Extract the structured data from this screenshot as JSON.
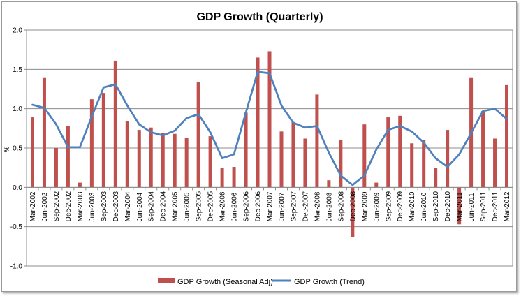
{
  "chart_data": {
    "type": "bar+line",
    "title": "GDP Growth (Quarterly)",
    "ylabel": "%",
    "xlabel": "",
    "ylim": [
      -1.0,
      2.0
    ],
    "yticks": [
      "-1.0",
      "-0.5",
      "0.0",
      "0.5",
      "1.0",
      "1.5",
      "2.0"
    ],
    "grid": "horizontal",
    "legend_position": "bottom",
    "categories": [
      "Mar-2002",
      "Jun-2002",
      "Sep-2002",
      "Dec-2002",
      "Mar-2003",
      "Jun-2003",
      "Sep-2003",
      "Dec-2003",
      "Mar-2004",
      "Jun-2004",
      "Sep-2004",
      "Dec-2004",
      "Mar-2005",
      "Jun-2005",
      "Sep-2005",
      "Dec-2005",
      "Mar-2006",
      "Jun-2006",
      "Sep-2006",
      "Dec-2006",
      "Mar-2007",
      "Jun-2007",
      "Sep-2007",
      "Dec-2007",
      "Mar-2008",
      "Jun-2008",
      "Sep-2008",
      "Dec-2008",
      "Mar-2009",
      "Jun-2009",
      "Sep-2009",
      "Dec-2009",
      "Mar-2010",
      "Jun-2010",
      "Sep-2010",
      "Dec-2010",
      "Mar-2011",
      "Jun-2011",
      "Sep-2011",
      "Dec-2011",
      "Mar-2012"
    ],
    "series": [
      {
        "name": "GDP Growth (Seasonal Adj)",
        "kind": "bar",
        "color": "#c0504d",
        "values": [
          0.89,
          1.39,
          0.5,
          0.78,
          0.06,
          1.12,
          1.2,
          1.61,
          0.84,
          0.73,
          0.76,
          0.69,
          0.68,
          0.63,
          1.34,
          0.65,
          0.25,
          0.26,
          0.95,
          1.65,
          1.73,
          0.71,
          0.83,
          0.62,
          1.18,
          0.09,
          0.6,
          -0.63,
          0.8,
          0.06,
          0.89,
          0.91,
          0.56,
          0.6,
          0.25,
          0.73,
          -0.47,
          1.39,
          0.97,
          0.62,
          1.3
        ]
      },
      {
        "name": "GDP Growth (Trend)",
        "kind": "line",
        "color": "#4f81bd",
        "values": [
          1.05,
          1.01,
          0.8,
          0.51,
          0.51,
          0.9,
          1.27,
          1.31,
          1.04,
          0.8,
          0.7,
          0.66,
          0.72,
          0.88,
          0.93,
          0.7,
          0.37,
          0.42,
          0.95,
          1.47,
          1.45,
          1.04,
          0.82,
          0.76,
          0.78,
          0.44,
          0.15,
          0.03,
          0.15,
          0.48,
          0.73,
          0.78,
          0.71,
          0.57,
          0.37,
          0.26,
          0.42,
          0.69,
          0.97,
          1.0,
          0.87
        ]
      }
    ]
  }
}
